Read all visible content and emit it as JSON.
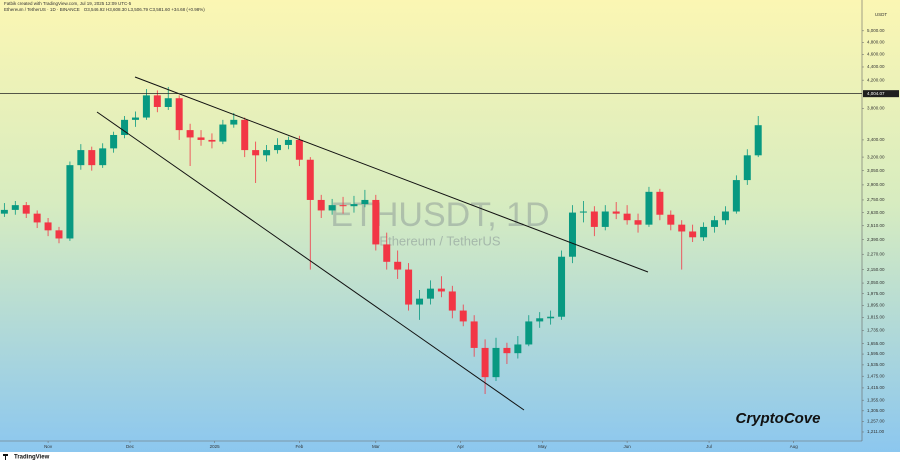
{
  "chart_data": {
    "type": "candlestick",
    "caption": "Fatbik created with TradingView.com, Jul 19, 2025 12:09 UTC-5",
    "title": "Ethereum / TetherUS · 1D · BINANCE",
    "ohlc": "O3,546.92 H3,608.30 L3,506.79 C3,581.60 +34.68 (+0.98%)",
    "watermark": "ETHUSDT, 1D",
    "watermark_subtitle": "Ethereum / TetherUS",
    "annotation": "CryptoCove",
    "y_unit": "USDT",
    "brand": "TradingView",
    "up_color": "#089981",
    "down_color": "#f23645",
    "log_scale": true,
    "grid": false,
    "x": [
      -16,
      -12,
      -8,
      -4,
      0,
      4,
      8,
      12,
      16,
      20,
      24,
      28,
      32,
      36,
      40,
      44,
      48,
      52,
      56,
      60,
      64,
      68,
      72,
      76,
      80,
      84,
      88,
      92,
      96,
      100,
      104,
      108,
      112,
      116,
      120,
      124,
      128,
      132,
      136,
      140,
      144,
      148,
      152,
      156,
      160,
      164,
      168,
      172,
      176,
      180,
      184,
      188,
      192,
      196,
      200,
      204,
      208,
      212,
      216,
      220,
      224,
      228,
      232,
      236,
      240,
      244,
      248,
      252,
      256,
      260
    ],
    "open": [
      2620,
      2655,
      2700,
      2620,
      2540,
      2470,
      2400,
      3110,
      3280,
      3110,
      3300,
      3460,
      3650,
      3680,
      3980,
      3820,
      3940,
      3520,
      3430,
      3400,
      3380,
      3590,
      3650,
      3280,
      3220,
      3280,
      3340,
      3400,
      3170,
      2750,
      2650,
      2700,
      2690,
      2710,
      2750,
      2350,
      2210,
      2150,
      1900,
      1940,
      2010,
      1990,
      1860,
      1790,
      1630,
      1470,
      1630,
      1600,
      1650,
      1790,
      1810,
      1820,
      2250,
      2630,
      2640,
      2500,
      2640,
      2620,
      2560,
      2520,
      2830,
      2610,
      2520,
      2460,
      2410,
      2500,
      2560,
      2640,
      2950,
      3220
    ],
    "high": [
      2720,
      2740,
      2730,
      2650,
      2580,
      2500,
      3150,
      3350,
      3320,
      3360,
      3500,
      3700,
      3760,
      4070,
      4050,
      4100,
      3980,
      3600,
      3520,
      3480,
      3650,
      3740,
      3680,
      3380,
      3340,
      3420,
      3440,
      3450,
      3200,
      2800,
      2760,
      2780,
      2790,
      2850,
      2800,
      2450,
      2300,
      2200,
      2000,
      2070,
      2100,
      2030,
      1900,
      1830,
      1680,
      1690,
      1660,
      1700,
      1830,
      1850,
      1860,
      2300,
      2700,
      2740,
      2690,
      2700,
      2730,
      2700,
      2620,
      2880,
      2860,
      2650,
      2560,
      2520,
      2540,
      2600,
      2690,
      3000,
      3290,
      3700
    ],
    "low": [
      2590,
      2610,
      2580,
      2490,
      2420,
      2360,
      2380,
      3060,
      3050,
      3080,
      3250,
      3420,
      3560,
      3650,
      3750,
      3780,
      3400,
      3100,
      3330,
      3300,
      3350,
      3550,
      3200,
      2920,
      3150,
      3240,
      3290,
      3100,
      2150,
      2580,
      2610,
      2620,
      2630,
      2680,
      2300,
      2150,
      2080,
      1860,
      1800,
      1900,
      1950,
      1810,
      1760,
      1580,
      1385,
      1450,
      1540,
      1570,
      1640,
      1750,
      1770,
      1800,
      2200,
      2540,
      2420,
      2470,
      2570,
      2520,
      2450,
      2500,
      2560,
      2470,
      2150,
      2370,
      2380,
      2450,
      2520,
      2620,
      2900,
      3200
    ],
    "close": [
      2655,
      2700,
      2620,
      2540,
      2470,
      2400,
      3110,
      3280,
      3110,
      3300,
      3460,
      3650,
      3680,
      3980,
      3820,
      3940,
      3520,
      3430,
      3400,
      3380,
      3590,
      3650,
      3280,
      3220,
      3280,
      3340,
      3400,
      3170,
      2750,
      2650,
      2700,
      2690,
      2710,
      2750,
      2350,
      2210,
      2150,
      1900,
      1940,
      2010,
      1990,
      1860,
      1790,
      1630,
      1470,
      1630,
      1600,
      1650,
      1790,
      1810,
      1820,
      2250,
      2630,
      2640,
      2500,
      2640,
      2620,
      2560,
      2520,
      2830,
      2610,
      2520,
      2460,
      2410,
      2500,
      2560,
      2640,
      2950,
      3220,
      3581.6
    ],
    "xlim": [
      -17.6,
      298
    ],
    "xticks": [
      {
        "value": 0,
        "label": "Nov"
      },
      {
        "value": 30,
        "label": "Dec"
      },
      {
        "value": 61,
        "label": "2025"
      },
      {
        "value": 92,
        "label": "Feb"
      },
      {
        "value": 120,
        "label": "Mar"
      },
      {
        "value": 151,
        "label": "Apr"
      },
      {
        "value": 181,
        "label": "May"
      },
      {
        "value": 212,
        "label": "Jun"
      },
      {
        "value": 242,
        "label": "Jul"
      },
      {
        "value": 273,
        "label": "Aug"
      }
    ],
    "ylim": [
      1173,
      5420
    ],
    "yticks": [
      {
        "value": 5000,
        "label": "5,000.00"
      },
      {
        "value": 4800,
        "label": "4,800.00"
      },
      {
        "value": 4600,
        "label": "4,600.00"
      },
      {
        "value": 4400,
        "label": "4,400.00"
      },
      {
        "value": 4200,
        "label": "4,200.00"
      },
      {
        "value": 3800,
        "label": "3,800.00"
      },
      {
        "value": 3400,
        "label": "3,400.00"
      },
      {
        "value": 3200,
        "label": "3,200.00"
      },
      {
        "value": 3050,
        "label": "3,050.00"
      },
      {
        "value": 2900,
        "label": "2,900.00"
      },
      {
        "value": 2750,
        "label": "2,750.00"
      },
      {
        "value": 2630,
        "label": "2,630.00"
      },
      {
        "value": 2510,
        "label": "2,510.00"
      },
      {
        "value": 2390,
        "label": "2,390.00"
      },
      {
        "value": 2270,
        "label": "2,270.00"
      },
      {
        "value": 2150,
        "label": "2,150.00"
      },
      {
        "value": 2050,
        "label": "2,050.00"
      },
      {
        "value": 1975,
        "label": "1,975.00"
      },
      {
        "value": 1895,
        "label": "1,895.00"
      },
      {
        "value": 1815,
        "label": "1,815.00"
      },
      {
        "value": 1735,
        "label": "1,735.00"
      },
      {
        "value": 1655,
        "label": "1,655.00"
      },
      {
        "value": 1595,
        "label": "1,595.00"
      },
      {
        "value": 1535,
        "label": "1,535.00"
      },
      {
        "value": 1475,
        "label": "1,475.00"
      },
      {
        "value": 1415,
        "label": "1,415.00"
      },
      {
        "value": 1355,
        "label": "1,355.00"
      },
      {
        "value": 1305,
        "label": "1,305.00"
      },
      {
        "value": 1257,
        "label": "1,257.00"
      },
      {
        "value": 1211,
        "label": "1,211.00"
      }
    ],
    "hline": {
      "value": 4004.07,
      "label": "4,004.07"
    }
  }
}
